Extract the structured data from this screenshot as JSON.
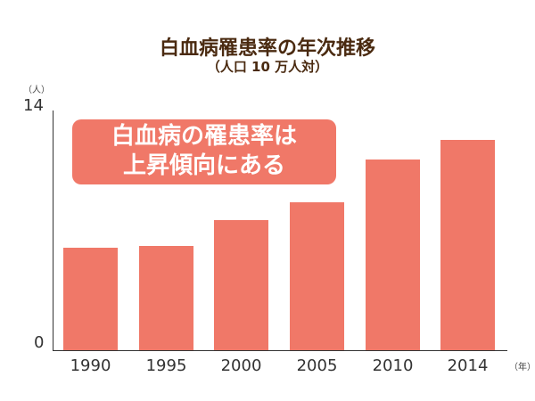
{
  "header": {
    "title": "白血病罹患率の年次推移",
    "subtitle": "（人口 10 万人対）"
  },
  "callout": {
    "line1": "白血病の罹患率は",
    "line2": "上昇傾向にある"
  },
  "axis": {
    "y_unit": "（人）",
    "y_ticks": [
      "14",
      "0"
    ],
    "x_unit": "（年）"
  },
  "colors": {
    "bar": "#f07868",
    "title": "#4a2a10"
  },
  "chart_data": {
    "type": "bar",
    "title": "白血病罹患率の年次推移",
    "subtitle": "（人口 10 万人対）",
    "categories": [
      "1990",
      "1995",
      "2000",
      "2005",
      "2010",
      "2014"
    ],
    "values": [
      5.9,
      6.0,
      7.5,
      8.5,
      11.0,
      12.1
    ],
    "xlabel": "（年）",
    "ylabel": "（人）",
    "ylim": [
      0,
      14
    ],
    "y_ticks": [
      0,
      14
    ],
    "grid": false,
    "legend": null,
    "annotations": [
      "白血病の罹患率は上昇傾向にある"
    ]
  }
}
